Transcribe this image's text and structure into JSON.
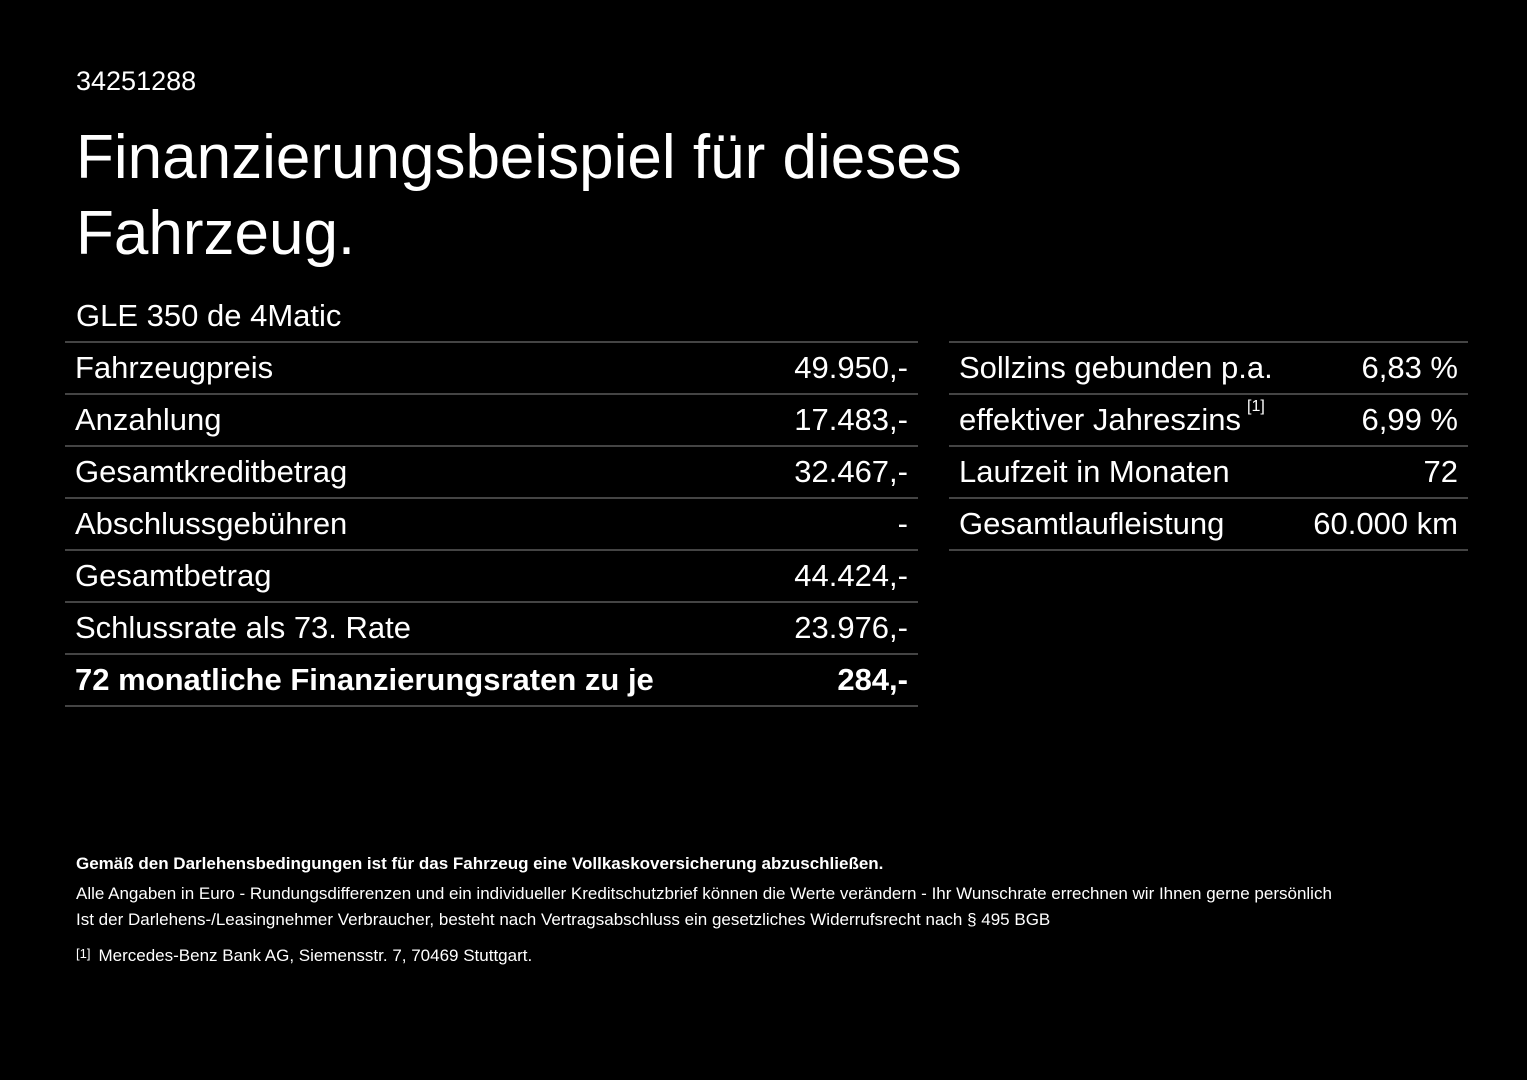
{
  "header": {
    "id": "34251288",
    "title_line1": "Finanzierungsbeispiel für dieses",
    "title_line2": "Fahrzeug."
  },
  "model": "GLE 350 de 4Matic",
  "left_table": {
    "rows": [
      [
        "Fahrzeugpreis",
        "49.950,-"
      ],
      [
        "Anzahlung",
        "17.483,-"
      ],
      [
        "Gesamtkreditbetrag",
        "32.467,-"
      ],
      [
        "Abschlussgebühren",
        "-"
      ],
      [
        "Gesamtbetrag",
        "44.424,-"
      ],
      [
        "Schlussrate als 73. Rate",
        "23.976,-"
      ],
      [
        "72 monatliche Finanzierungsraten zu je",
        "284,-"
      ]
    ]
  },
  "right_table": {
    "rows": [
      [
        "Sollzins gebunden p.a.",
        "6,83 %"
      ],
      [
        "effektiver Jahreszins",
        "6,99 %"
      ],
      [
        "Laufzeit in Monaten",
        "72"
      ],
      [
        "Gesamtlaufleistung",
        "60.000 km"
      ]
    ],
    "footnote_ref": "[1]"
  },
  "footer": {
    "bold": "Gemäß den Darlehensbedingungen ist für das Fahrzeug eine Vollkaskoversicherung abzuschließen.",
    "line1": "Alle Angaben in Euro - Rundungsdifferenzen und ein individueller Kreditschutzbrief können die Werte verändern - Ihr Wunschrate errechnen wir Ihnen gerne persönlich",
    "line2": "Ist der Darlehens-/Leasingnehmer Verbraucher, besteht nach Vertragsabschluss ein gesetzliches Widerrufsrecht nach § 495 BGB",
    "note_mark": "[1]",
    "note": "Mercedes-Benz Bank AG, Siemensstr. 7, 70469 Stuttgart."
  }
}
